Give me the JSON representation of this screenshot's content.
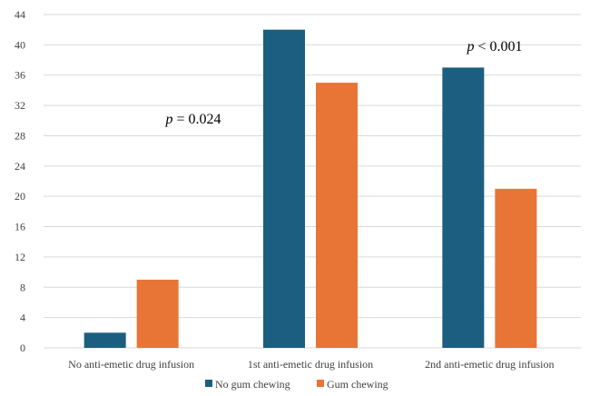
{
  "chart_data": {
    "type": "bar",
    "title": "",
    "xlabel": "",
    "ylabel": "",
    "categories": [
      "No anti-emetic drug infusion",
      "1st anti-emetic drug infusion",
      "2nd anti-emetic drug infusion"
    ],
    "series": [
      {
        "name": "No gum chewing",
        "values": [
          2,
          42,
          37
        ],
        "color": "#1b5e80"
      },
      {
        "name": "Gum chewing",
        "values": [
          9,
          35,
          21
        ],
        "color": "#e87536"
      }
    ],
    "ylim": [
      0,
      44
    ],
    "yticks": [
      "0",
      "4",
      "8",
      "12",
      "16",
      "20",
      "24",
      "28",
      "32",
      "36",
      "40",
      "44"
    ],
    "grid": true,
    "legend": "bottom-center",
    "annotations": [
      {
        "category": "No anti-emetic drug infusion",
        "p_label": "p",
        "text": " = 0.024"
      },
      {
        "category": "2nd anti-emetic drug infusion",
        "p_label": "p",
        "text": " < 0.001"
      }
    ]
  },
  "colors": {
    "grid": "#d9d9d9",
    "text": "#404040"
  }
}
